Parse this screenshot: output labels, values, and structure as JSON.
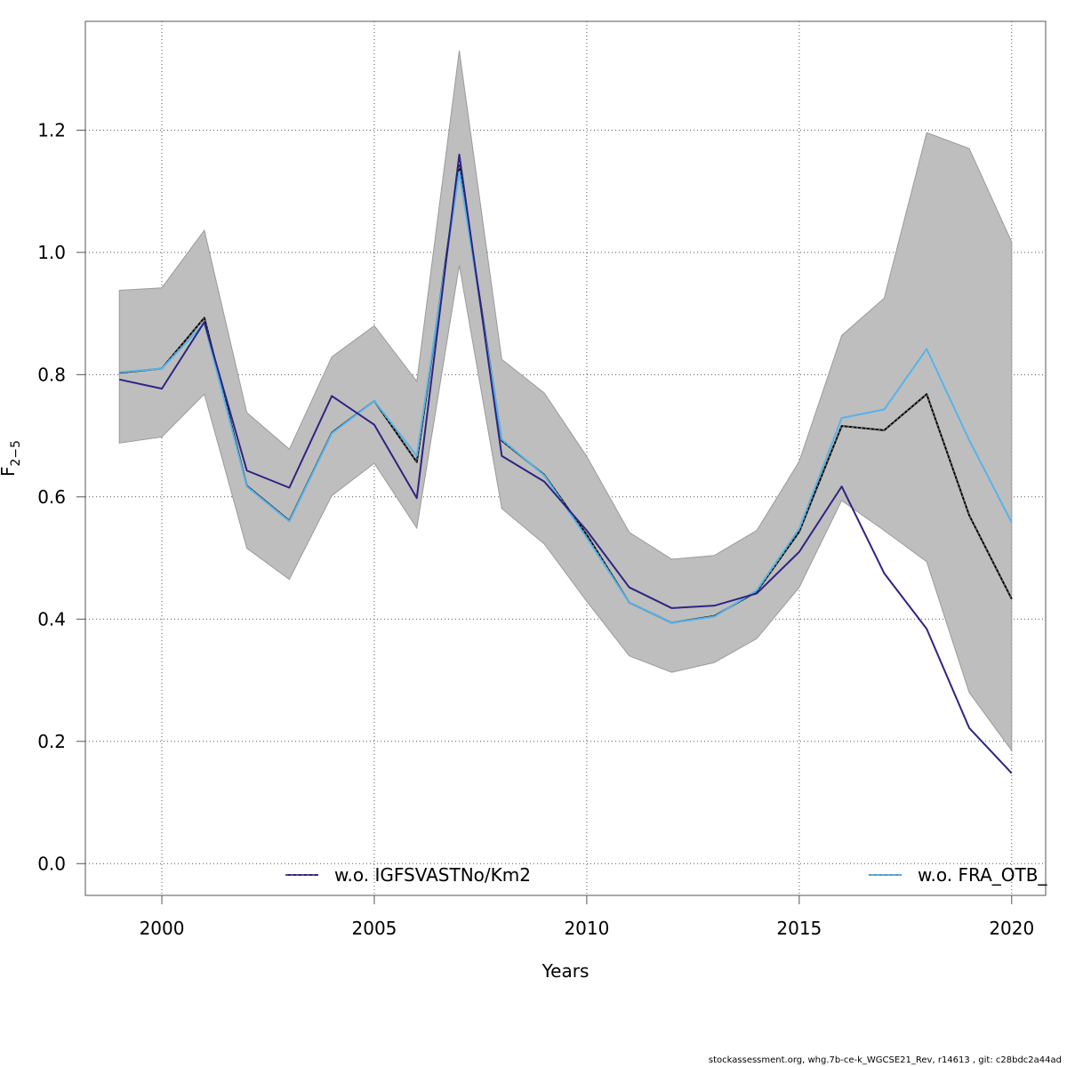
{
  "chart_data": {
    "type": "line",
    "xlabel": "Years",
    "ylabel": {
      "base": "F",
      "subscript": "2−5"
    },
    "xlim": [
      1998.2,
      2020.8
    ],
    "ylim": [
      -0.052,
      1.378
    ],
    "x_ticks": [
      2000,
      2005,
      2010,
      2015,
      2020
    ],
    "y_ticks": [
      0.0,
      0.2,
      0.4,
      0.6,
      0.8,
      1.0,
      1.2
    ],
    "y_tick_labels": [
      "0.0",
      "0.2",
      "0.4",
      "0.6",
      "0.8",
      "1.0",
      "1.2"
    ],
    "grid": true,
    "x": [
      1999,
      2000,
      2001,
      2002,
      2003,
      2004,
      2005,
      2006,
      2007,
      2008,
      2009,
      2010,
      2011,
      2012,
      2013,
      2014,
      2015,
      2016,
      2017,
      2018,
      2019,
      2020
    ],
    "confidence_band": {
      "color": "#bebebe",
      "upper": [
        0.938,
        0.942,
        1.036,
        0.738,
        0.678,
        0.829,
        0.88,
        0.789,
        1.33,
        0.825,
        0.77,
        0.666,
        0.542,
        0.498,
        0.504,
        0.545,
        0.658,
        0.864,
        0.925,
        1.196,
        1.17,
        1.017
      ],
      "lower": [
        0.688,
        0.698,
        0.768,
        0.516,
        0.465,
        0.602,
        0.655,
        0.549,
        0.979,
        0.581,
        0.523,
        0.429,
        0.34,
        0.313,
        0.329,
        0.368,
        0.452,
        0.594,
        0.545,
        0.494,
        0.28,
        0.185
      ]
    },
    "series": [
      {
        "key": "base",
        "color": "#000000",
        "style": "dashed",
        "values": [
          0.803,
          0.81,
          0.893,
          0.618,
          0.561,
          0.705,
          0.757,
          0.657,
          1.142,
          0.692,
          0.636,
          0.538,
          0.427,
          0.394,
          0.405,
          0.445,
          0.543,
          0.716,
          0.709,
          0.768,
          0.57,
          0.433
        ]
      },
      {
        "key": "fra",
        "name": "w.o. FRA_OTB_",
        "color": "#56b4e9",
        "style": "solid",
        "values": [
          0.804,
          0.81,
          0.884,
          0.617,
          0.56,
          0.704,
          0.757,
          0.667,
          1.132,
          0.694,
          0.635,
          0.533,
          0.427,
          0.394,
          0.404,
          0.447,
          0.548,
          0.729,
          0.743,
          0.842,
          0.693,
          0.558
        ]
      },
      {
        "key": "igfs",
        "name": "w.o. IGFSVASTNo/Km2",
        "color": "#2d2483",
        "style": "solid",
        "values": [
          0.792,
          0.777,
          0.886,
          0.643,
          0.615,
          0.765,
          0.718,
          0.598,
          1.16,
          0.667,
          0.625,
          0.545,
          0.452,
          0.418,
          0.422,
          0.442,
          0.51,
          0.617,
          0.475,
          0.384,
          0.222,
          0.148
        ]
      }
    ],
    "legend": {
      "placement": "bottom",
      "entries": [
        {
          "label": "w.o. IGFSVASTNo/Km2",
          "color": "#2d2483"
        },
        {
          "label": "w.o. FRA_OTB_",
          "color": "#56b4e9"
        }
      ]
    }
  },
  "footer_text": "stockassessment.org, whg.7b-ce-k_WGCSE21_Rev, r14613 , git: c28bdc2a44ad"
}
